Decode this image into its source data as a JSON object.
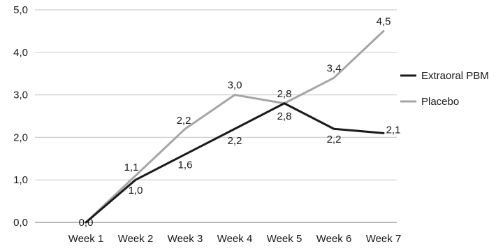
{
  "chart_data": {
    "type": "line",
    "categories": [
      "Week 1",
      "Week 2",
      "Week 3",
      "Week 4",
      "Week 5",
      "Week 6",
      "Week 7"
    ],
    "y_tick_labels": [
      "0,0",
      "1,0",
      "2,0",
      "3,0",
      "4,0",
      "5,0"
    ],
    "ylim": [
      0,
      5
    ],
    "grid": "horizontal",
    "legend_position": "right",
    "series": [
      {
        "name": "Extraoral PBM",
        "color": "#1a1a1a",
        "values": [
          0.0,
          1.0,
          1.6,
          2.2,
          2.8,
          2.2,
          2.1
        ],
        "labels": [
          "0,0",
          "1,0",
          "1,6",
          "2,2",
          "2,8",
          "2,2",
          "2,1"
        ]
      },
      {
        "name": "Placebo",
        "color": "#a6a6a6",
        "values": [
          0.0,
          1.1,
          2.2,
          3.0,
          2.8,
          3.4,
          4.5
        ],
        "labels": [
          "0,0",
          "1,1",
          "2,2",
          "3,0",
          "2,8",
          "3,4",
          "4,5"
        ]
      }
    ]
  }
}
